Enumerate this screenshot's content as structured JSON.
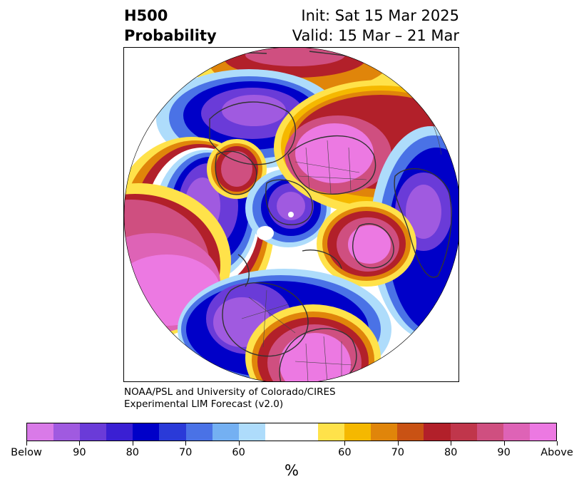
{
  "header": {
    "title_line1": "H500",
    "title_line2": "Probability",
    "init": "Init: Sat 15 Mar 2025",
    "valid": "Valid: 15 Mar – 21 Mar"
  },
  "credit": {
    "line1": "NOAA/PSL and University of Colorado/CIRES",
    "line2": "Experimental LIM Forecast (v2.0)"
  },
  "colorbar": {
    "colors": [
      "#d97ae8",
      "#a05ae0",
      "#6a3bd8",
      "#3a1fd3",
      "#0000c8",
      "#2a3ad8",
      "#4a72e6",
      "#74b0f2",
      "#aedcfb",
      "#ffffff",
      "#ffffff",
      "#ffe24a",
      "#f5b800",
      "#e0850a",
      "#c95214",
      "#b2202a",
      "#c0364b",
      "#cf4f80",
      "#de63b6",
      "#ec79e2"
    ],
    "tick_labels": [
      "Below",
      "90",
      "80",
      "70",
      "60",
      "60",
      "70",
      "80",
      "90",
      "Above"
    ],
    "unit": "%"
  },
  "map": {
    "projection": "north polar stereographic",
    "palette": {
      "magenta": "#e07ade",
      "pink": "#d2589c",
      "crimson": "#b72535",
      "orange": "#d6730f",
      "gold": "#f2b80b",
      "yellow": "#ffe24a",
      "lightblue": "#b9ddfb",
      "skyblue": "#79b3f0",
      "blue": "#3d5de0",
      "darkblue": "#1c1cce",
      "indigo": "#5b35d6",
      "violet": "#9b57e0",
      "lavender": "#c977ea"
    }
  }
}
